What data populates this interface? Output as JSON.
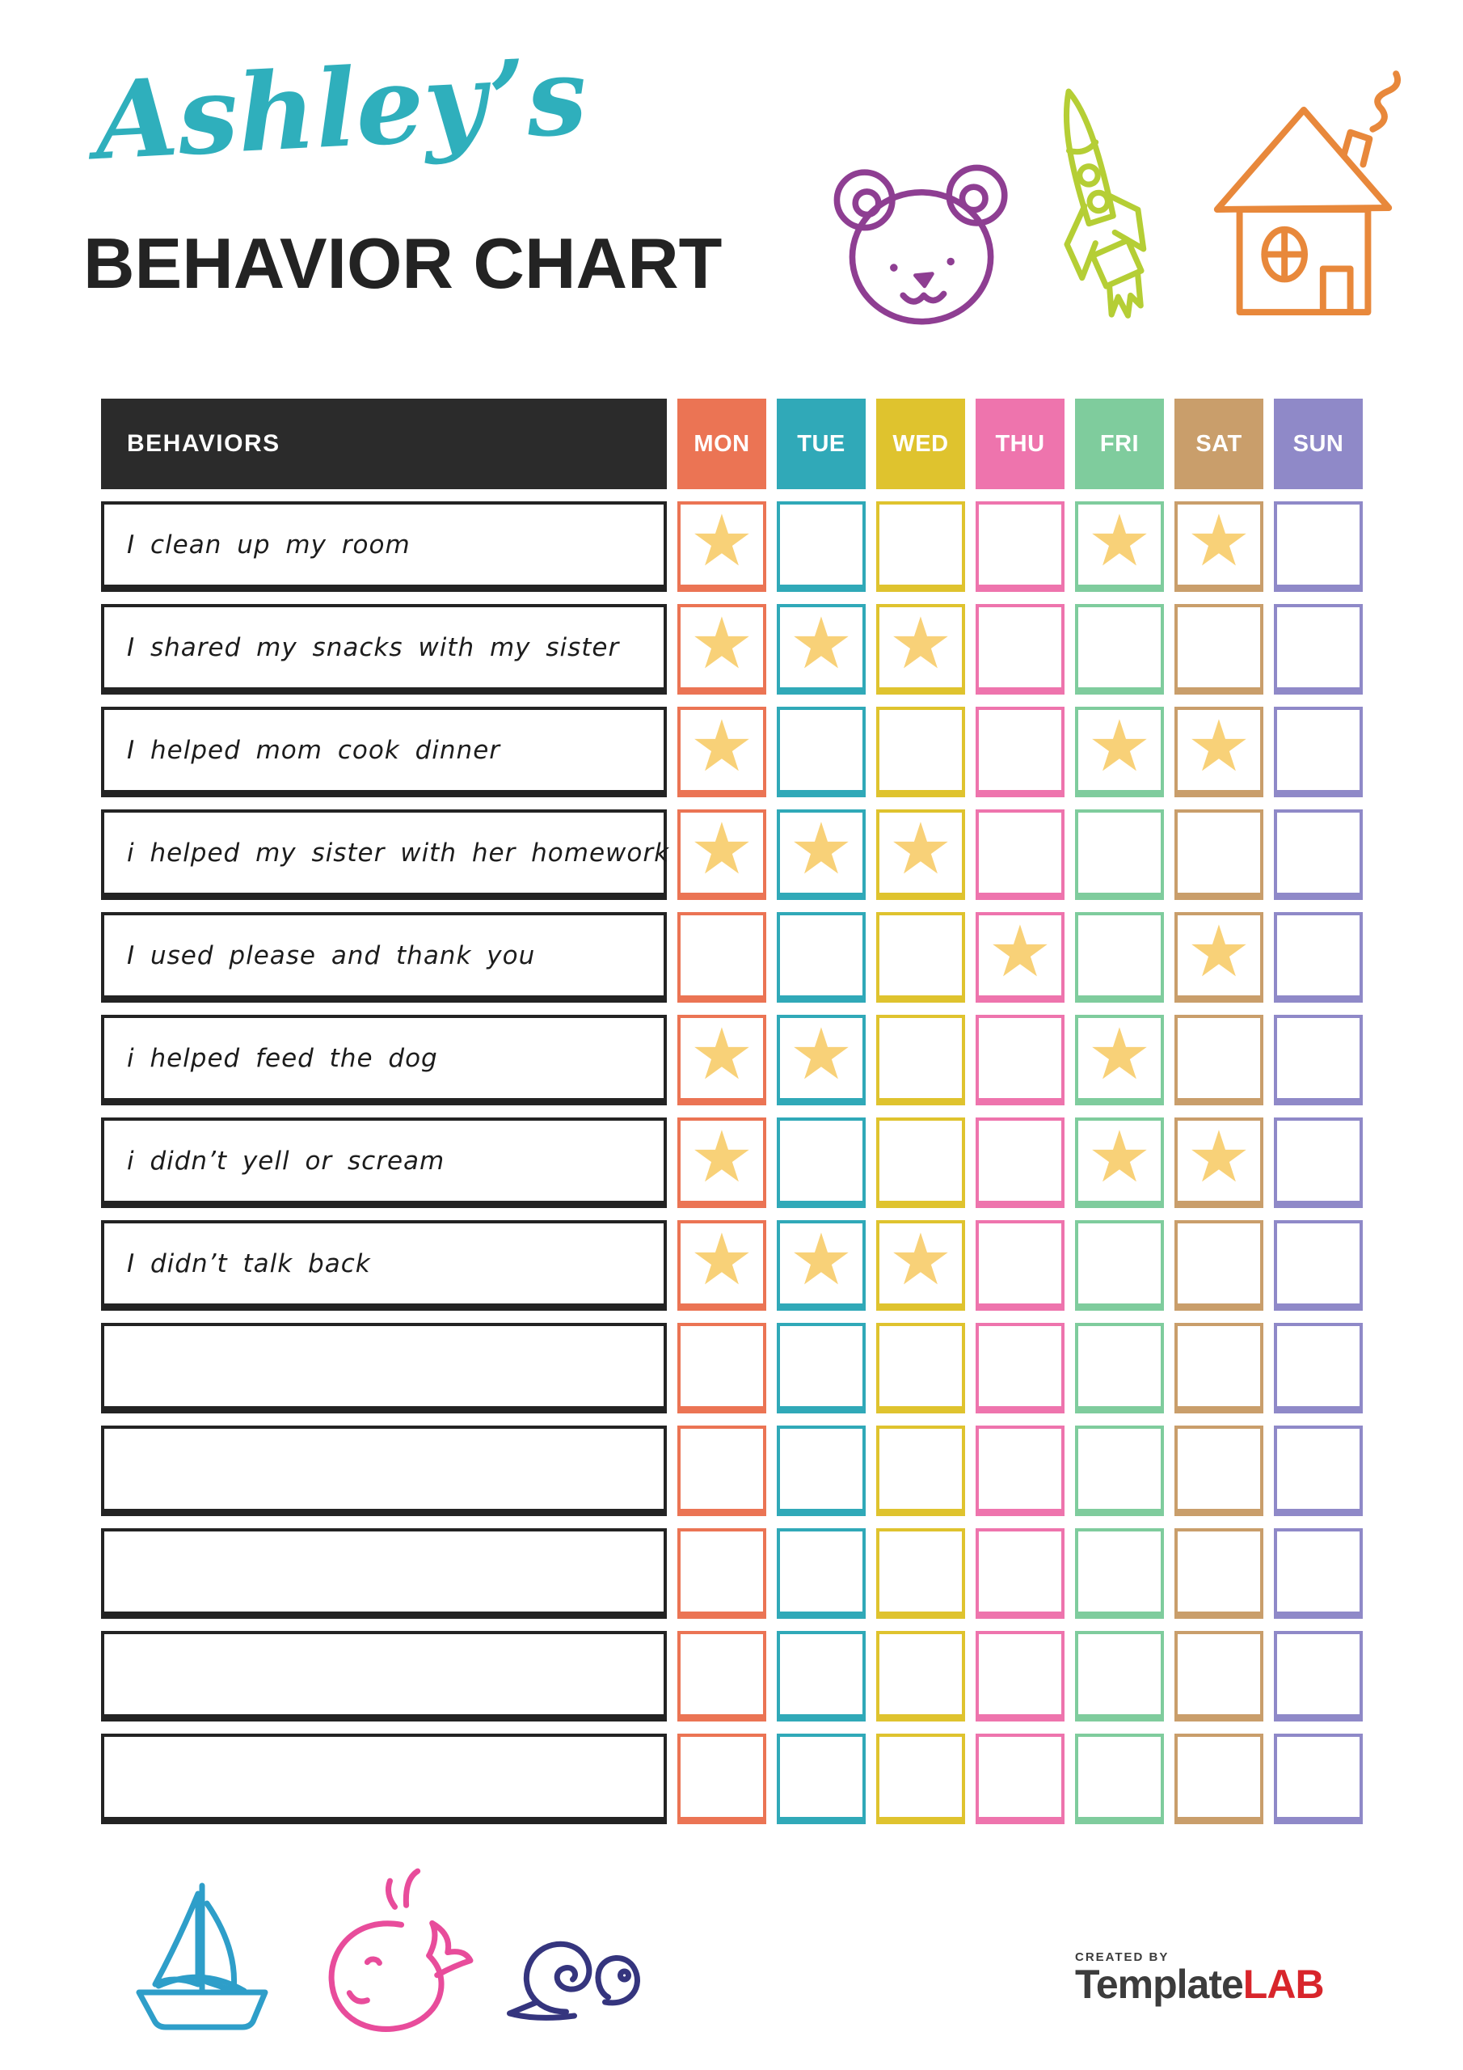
{
  "header": {
    "name": "Ashley’s",
    "name_color": "#2FAFBC",
    "title": "BEHAVIOR CHART",
    "title_color": "#232323"
  },
  "doodles": {
    "colors": {
      "bear": "#8E3E92",
      "rocket": "#B5CE35",
      "house": "#E8883B",
      "sailboat": "#2E9EC9",
      "whale": "#E84C9B",
      "snail": "#35357E"
    }
  },
  "table": {
    "behaviors_header": "BEHAVIORS",
    "header_bg": "#2B2B2B",
    "star_glyph": "★",
    "star_color": "#F8D178",
    "days": [
      {
        "label": "MON",
        "color": "#EB7454"
      },
      {
        "label": "TUE",
        "color": "#30A9B8"
      },
      {
        "label": "WED",
        "color": "#DFC32E"
      },
      {
        "label": "THU",
        "color": "#EE74AD"
      },
      {
        "label": "FRI",
        "color": "#7FCC9D"
      },
      {
        "label": "SAT",
        "color": "#C99E6B"
      },
      {
        "label": "SUN",
        "color": "#8F89C8"
      }
    ],
    "rows": [
      {
        "behavior": "I clean up my room",
        "stars": [
          "MON",
          "FRI",
          "SAT"
        ]
      },
      {
        "behavior": "I shared my snacks with my sister",
        "stars": [
          "MON",
          "TUE",
          "WED"
        ]
      },
      {
        "behavior": "I helped mom cook dinner",
        "stars": [
          "MON",
          "FRI",
          "SAT"
        ]
      },
      {
        "behavior": "i helped my sister with her homework",
        "stars": [
          "MON",
          "TUE",
          "WED"
        ]
      },
      {
        "behavior": "I used please and thank you",
        "stars": [
          "THU",
          "SAT"
        ]
      },
      {
        "behavior": "i helped feed the dog",
        "stars": [
          "MON",
          "TUE",
          "FRI"
        ]
      },
      {
        "behavior": "i didn’t yell or scream",
        "stars": [
          "MON",
          "FRI",
          "SAT"
        ]
      },
      {
        "behavior": "I didn’t talk back",
        "stars": [
          "MON",
          "TUE",
          "WED"
        ]
      },
      {
        "behavior": "",
        "stars": []
      },
      {
        "behavior": "",
        "stars": []
      },
      {
        "behavior": "",
        "stars": []
      },
      {
        "behavior": "",
        "stars": []
      },
      {
        "behavior": "",
        "stars": []
      }
    ]
  },
  "footer": {
    "created_by": "CREATED BY",
    "brand_name": "Template",
    "brand_suffix": "LAB",
    "brand_suffix_color": "#D8252B"
  }
}
